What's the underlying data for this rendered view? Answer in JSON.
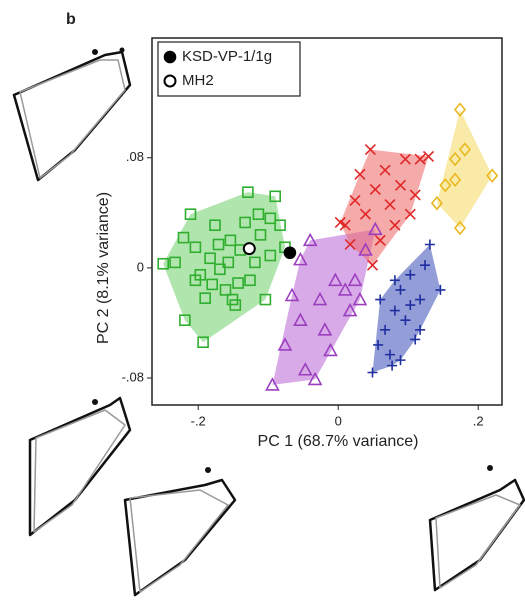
{
  "chart_data": {
    "type": "scatter",
    "panel_label": "b",
    "x_label": "PC 1 (68.7% variance)",
    "y_label": "PC 2 (8.1% variance)",
    "xlim": [
      -0.266,
      0.234
    ],
    "ylim": [
      -0.0996,
      0.167
    ],
    "xticks": [
      {
        "value": -0.2,
        "label": "-.2"
      },
      0,
      {
        "value": 0.2,
        "label": ".2"
      }
    ],
    "yticks": [
      {
        "value": -0.08,
        "label": "-.08"
      },
      0,
      {
        "value": 0.08,
        "label": ".08"
      }
    ],
    "grid": false,
    "legend": "top-left",
    "series": [
      {
        "color": "#2fae2f",
        "fill": "#6fd06a",
        "marker": "square",
        "hull": true,
        "x": [
          -0.25,
          -0.233,
          -0.221,
          -0.211,
          -0.204,
          -0.197,
          -0.19,
          -0.183,
          -0.176,
          -0.169,
          -0.161,
          -0.154,
          -0.147,
          -0.14,
          -0.133,
          -0.126,
          -0.119,
          -0.111,
          -0.104,
          -0.097,
          -0.09,
          -0.083,
          -0.219,
          -0.193,
          -0.18,
          -0.157,
          -0.129,
          -0.114,
          -0.143,
          -0.171,
          -0.204,
          -0.097,
          -0.076,
          -0.151
        ],
        "values": [
          0.003,
          0.004,
          0.022,
          0.039,
          0.015,
          -0.005,
          -0.022,
          0.007,
          0.031,
          -0.001,
          -0.016,
          0.02,
          -0.027,
          0.013,
          0.033,
          -0.009,
          0.004,
          0.024,
          -0.023,
          0.009,
          0.052,
          0.031,
          -0.038,
          -0.054,
          -0.012,
          0.004,
          0.055,
          0.039,
          -0.011,
          0.017,
          -0.009,
          0.036,
          0.015,
          -0.023
        ]
      },
      {
        "color": "#9b3fbf",
        "fill": "#b866d6",
        "marker": "triangle",
        "hull": true,
        "x": [
          -0.094,
          -0.076,
          -0.066,
          -0.054,
          -0.04,
          -0.026,
          -0.019,
          -0.004,
          0.01,
          0.024,
          0.039,
          0.053,
          -0.047,
          -0.033,
          -0.011,
          0.017,
          -0.054,
          0.031
        ],
        "values": [
          -0.085,
          -0.056,
          -0.02,
          0.006,
          0.02,
          -0.023,
          -0.045,
          -0.009,
          -0.016,
          -0.009,
          0.013,
          0.028,
          -0.074,
          -0.081,
          -0.06,
          -0.031,
          -0.038,
          -0.023
        ]
      },
      {
        "color": "#e02828",
        "fill": "#ef6666",
        "marker": "cross",
        "hull": true,
        "x": [
          0.01,
          0.024,
          0.031,
          0.039,
          0.046,
          0.053,
          0.06,
          0.067,
          0.074,
          0.081,
          0.089,
          0.096,
          0.103,
          0.11,
          0.129,
          0.017,
          0.049,
          0.003,
          0.117
        ],
        "values": [
          0.031,
          0.049,
          0.068,
          0.039,
          0.086,
          0.057,
          0.02,
          0.071,
          0.046,
          0.031,
          0.06,
          0.079,
          0.039,
          0.053,
          0.081,
          0.017,
          0.002,
          0.033,
          0.079
        ]
      },
      {
        "color": "#1f2f9f",
        "fill": "#3a4cb6",
        "marker": "plus",
        "hull": true,
        "x": [
          0.049,
          0.06,
          0.067,
          0.074,
          0.081,
          0.089,
          0.096,
          0.103,
          0.11,
          0.117,
          0.124,
          0.131,
          0.146,
          0.089,
          0.057,
          0.103,
          0.081,
          0.117,
          0.077
        ],
        "values": [
          -0.076,
          -0.023,
          -0.045,
          -0.063,
          -0.031,
          -0.016,
          -0.038,
          -0.005,
          -0.052,
          -0.023,
          0.002,
          0.017,
          -0.016,
          -0.067,
          -0.056,
          -0.027,
          -0.009,
          -0.045,
          -0.071
        ]
      },
      {
        "color": "#e8b820",
        "fill": "#f6d860",
        "marker": "diamond",
        "hull": true,
        "x": [
          0.174,
          0.167,
          0.181,
          0.167,
          0.141,
          0.22,
          0.174,
          0.153
        ],
        "values": [
          0.115,
          0.079,
          0.086,
          0.064,
          0.047,
          0.067,
          0.029,
          0.06
        ]
      },
      {
        "name": "KSD-VP-1/1g",
        "color": "#000000",
        "marker": "filled-circle",
        "hull": false,
        "x": [
          -0.069
        ],
        "values": [
          0.011
        ]
      },
      {
        "name": "MH2",
        "color": "#000000",
        "marker": "open-circle",
        "hull": false,
        "x": [
          -0.127
        ],
        "values": [
          0.014
        ]
      }
    ]
  }
}
